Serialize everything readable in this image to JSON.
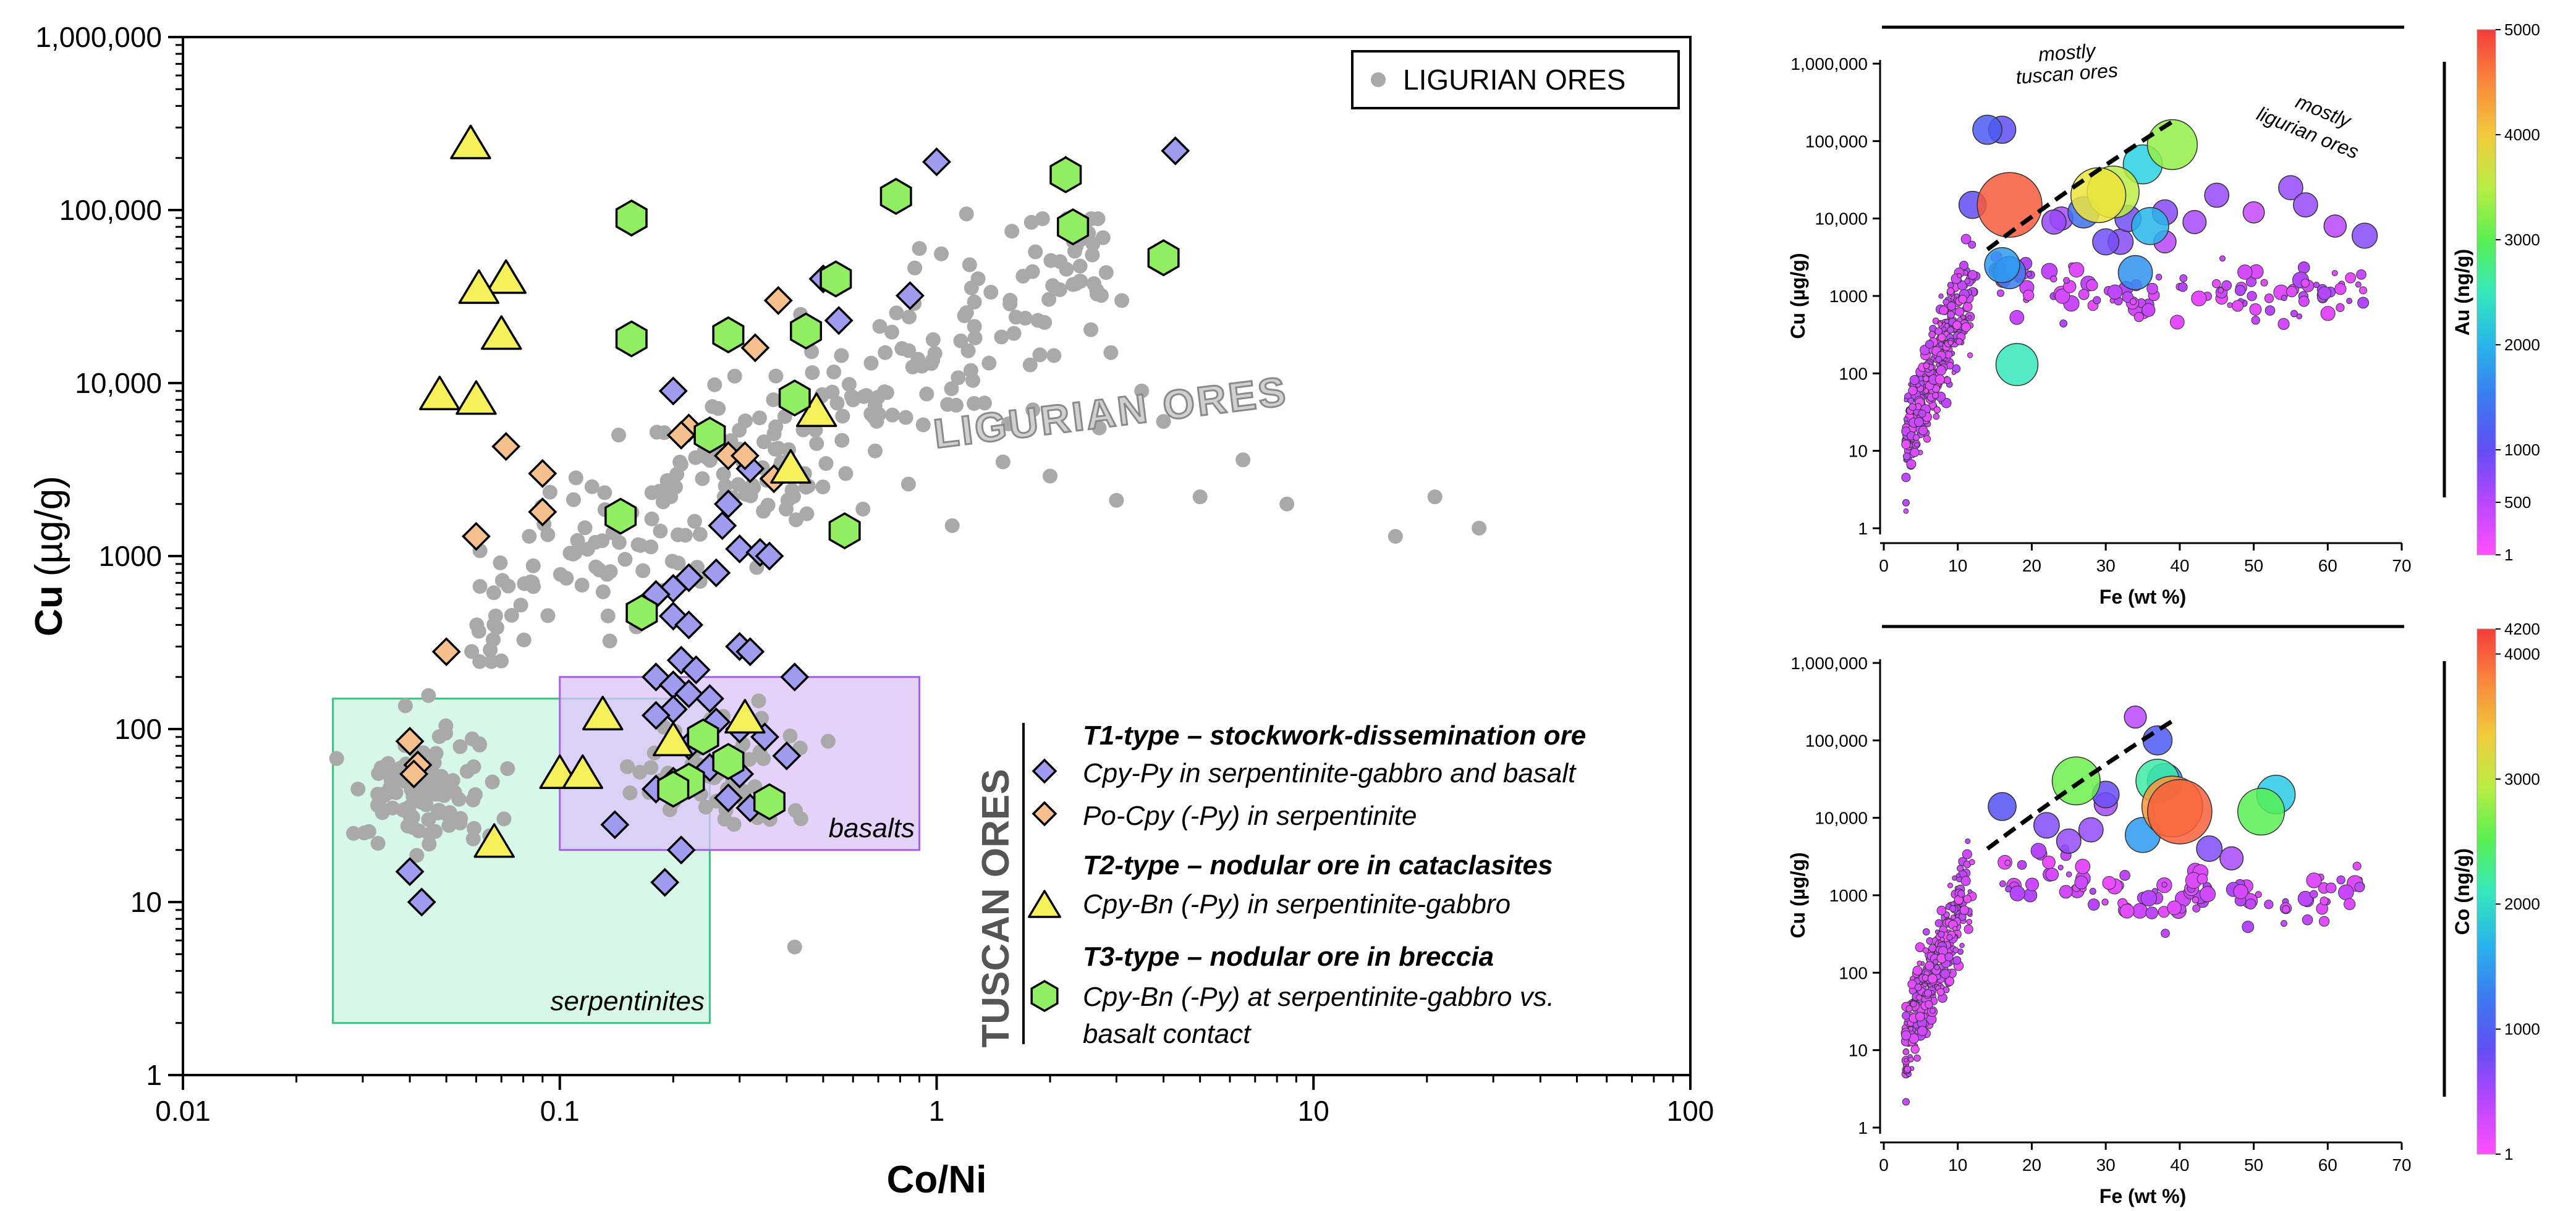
{
  "colors": {
    "ligurian": "#a9a9a9",
    "t1": "#9f9cf0",
    "t1_po": "#f6c08e",
    "t2": "#f6f15a",
    "t3": "#91ee62",
    "serp_fill": "#c9f5e1",
    "serp_stroke": "#39c47e",
    "basalt_fill": "#dcc3fa",
    "basalt_stroke": "#a660e8"
  },
  "chart_data": [
    {
      "id": "main",
      "type": "scatter",
      "xscale": "log",
      "yscale": "log",
      "xlim": [
        0.01,
        100
      ],
      "ylim": [
        1,
        1000000
      ],
      "xlabel": "Co/Ni",
      "ylabel_bold": "Cu",
      "ylabel_unit": "(µg/g)",
      "x_ticks": [
        0.01,
        0.1,
        1,
        10,
        100
      ],
      "x_tick_labels": [
        "0.01",
        "0.1",
        "1",
        "10",
        "100"
      ],
      "y_ticks": [
        1,
        10,
        100,
        1000,
        10000,
        100000,
        1000000
      ],
      "y_tick_labels": [
        "1",
        "10",
        "100",
        "1000",
        "10,000",
        "100,000",
        "1,000,000"
      ],
      "legend_box": {
        "label": "LIGURIAN ORES",
        "position": "top-right"
      },
      "annotation_ligurian": "LIGURIAN   ORES",
      "fields": [
        {
          "name": "serpentinites",
          "label": "serpentinites",
          "x": [
            0.025,
            0.25
          ],
          "y": [
            2,
            150
          ]
        },
        {
          "name": "basalts",
          "label": "basalts",
          "x": [
            0.1,
            0.9
          ],
          "y": [
            20,
            200
          ]
        }
      ],
      "tuscan_legend": {
        "title": "TUSCAN ORES",
        "t1_heading": "T1-type – stockwork-dissemination ore",
        "t1_item1": "Cpy-Py in serpentinite-gabbro and basalt",
        "t1_item2": "Po-Cpy (-Py) in serpentinite",
        "t2_heading": "T2-type – nodular ore in cataclasites",
        "t2_item1": "Cpy-Bn (-Py) in serpentinite-gabbro",
        "t3_heading": "T3-type – nodular ore in breccia",
        "t3_item1": "Cpy-Bn (-Py) at serpentinite-gabbro vs.",
        "t3_item2": "basalt contact"
      },
      "series": [
        {
          "name": "T1 Cpy-Py",
          "marker": "diamond",
          "points": [
            [
              1.0,
              190000
            ],
            [
              4.3,
              220000
            ],
            [
              2.2,
              170000
            ],
            [
              0.55,
              23000
            ],
            [
              0.85,
              32000
            ],
            [
              0.5,
              40000
            ],
            [
              0.2,
              9000
            ],
            [
              0.32,
              3200
            ],
            [
              0.28,
              2000
            ],
            [
              0.27,
              1500
            ],
            [
              0.3,
              1100
            ],
            [
              0.34,
              1050
            ],
            [
              0.36,
              1000
            ],
            [
              0.26,
              800
            ],
            [
              0.22,
              750
            ],
            [
              0.2,
              650
            ],
            [
              0.18,
              600
            ],
            [
              0.2,
              450
            ],
            [
              0.22,
              400
            ],
            [
              0.3,
              300
            ],
            [
              0.32,
              280
            ],
            [
              0.21,
              250
            ],
            [
              0.23,
              220
            ],
            [
              0.18,
              200
            ],
            [
              0.2,
              180
            ],
            [
              0.22,
              160
            ],
            [
              0.25,
              150
            ],
            [
              0.2,
              130
            ],
            [
              0.18,
              120
            ],
            [
              0.26,
              110
            ],
            [
              0.3,
              100
            ],
            [
              0.35,
              90
            ],
            [
              0.22,
              80
            ],
            [
              0.4,
              70
            ],
            [
              0.25,
              60
            ],
            [
              0.3,
              55
            ],
            [
              0.2,
              50
            ],
            [
              0.18,
              45
            ],
            [
              0.28,
              40
            ],
            [
              0.32,
              35
            ],
            [
              0.14,
              28
            ],
            [
              0.21,
              20
            ],
            [
              0.19,
              13
            ],
            [
              0.04,
              15
            ],
            [
              0.043,
              10
            ],
            [
              0.42,
              200
            ]
          ]
        },
        {
          "name": "T1 Po-Cpy",
          "marker": "diamond",
          "points": [
            [
              0.38,
              30000
            ],
            [
              0.33,
              16000
            ],
            [
              0.072,
              4300
            ],
            [
              0.22,
              5500
            ],
            [
              0.21,
              5000
            ],
            [
              0.25,
              5300
            ],
            [
              0.28,
              3800
            ],
            [
              0.31,
              3800
            ],
            [
              0.37,
              2800
            ],
            [
              0.09,
              3000
            ],
            [
              0.09,
              1800
            ],
            [
              0.06,
              1300
            ],
            [
              0.05,
              280
            ],
            [
              0.04,
              85
            ],
            [
              0.042,
              62
            ],
            [
              0.041,
              55
            ]
          ]
        },
        {
          "name": "T2 Cpy-Bn",
          "marker": "triangle",
          "points": [
            [
              0.058,
              240000
            ],
            [
              0.072,
              40000
            ],
            [
              0.061,
              35000
            ],
            [
              0.07,
              19000
            ],
            [
              0.048,
              8500
            ],
            [
              0.06,
              8000
            ],
            [
              0.48,
              6800
            ],
            [
              0.41,
              3200
            ],
            [
              0.13,
              120
            ],
            [
              0.31,
              115
            ],
            [
              0.2,
              85
            ],
            [
              0.1,
              55
            ],
            [
              0.115,
              55
            ],
            [
              0.067,
              22
            ]
          ]
        },
        {
          "name": "T3 Cpy-Bn",
          "marker": "hexagon",
          "points": [
            [
              0.155,
              90000
            ],
            [
              0.78,
              120000
            ],
            [
              2.2,
              160000
            ],
            [
              2.3,
              80000
            ],
            [
              4.0,
              53000
            ],
            [
              0.54,
              40000
            ],
            [
              0.45,
              20000
            ],
            [
              0.28,
              19000
            ],
            [
              0.155,
              18000
            ],
            [
              0.42,
              8200
            ],
            [
              0.25,
              5000
            ],
            [
              0.145,
              1700
            ],
            [
              0.57,
              1400
            ],
            [
              0.165,
              470
            ],
            [
              0.24,
              90
            ],
            [
              0.28,
              65
            ],
            [
              0.22,
              50
            ],
            [
              0.2,
              45
            ],
            [
              0.36,
              38
            ]
          ]
        }
      ]
    },
    {
      "id": "topright",
      "type": "bubble-scatter",
      "xlim": [
        0,
        70
      ],
      "ylim": [
        1,
        1000000
      ],
      "xlabel": "Fe (wt %)",
      "ylabel": "Cu (µg/g)",
      "x_ticks": [
        0,
        10,
        20,
        30,
        40,
        50,
        60,
        70
      ],
      "y_tick_labels": [
        "1",
        "10",
        "100",
        "1000",
        "10,000",
        "100,000",
        "1,000,000"
      ],
      "annotation_tuscan": [
        "mostly",
        "tuscan ores"
      ],
      "annotation_ligurian": [
        "mostly",
        "ligurian ores"
      ],
      "colorbar_label": "Au (ng/g)",
      "colorbar_ticks": [
        1,
        500,
        1000,
        2000,
        3000,
        4000,
        5000
      ],
      "colorbar_tick_labels": [
        "1",
        "500",
        "1000",
        "2000",
        "3000",
        "4000",
        "5000"
      ],
      "colorbar_max": 5000,
      "bubbles": [
        [
          17,
          15000,
          4800
        ],
        [
          39,
          90000,
          3300
        ],
        [
          14,
          140000,
          1200
        ],
        [
          16,
          140000,
          1000
        ],
        [
          12,
          15000,
          1000
        ],
        [
          18,
          130,
          2500
        ],
        [
          35,
          50000,
          2200
        ],
        [
          31,
          22000,
          3500
        ],
        [
          29,
          20000,
          3800
        ],
        [
          36,
          8000,
          2000
        ],
        [
          27,
          12000,
          1400
        ],
        [
          33,
          10000,
          900
        ],
        [
          23,
          9000,
          700
        ],
        [
          16,
          2500,
          1800
        ],
        [
          17,
          2000,
          1500
        ],
        [
          34,
          2000,
          1700
        ],
        [
          38,
          12000,
          800
        ],
        [
          45,
          20000,
          700
        ],
        [
          55,
          25000,
          700
        ],
        [
          61,
          8000,
          500
        ],
        [
          65,
          6000,
          800
        ],
        [
          50,
          12000,
          400
        ],
        [
          57,
          15000,
          700
        ],
        [
          24,
          10000,
          600
        ],
        [
          30,
          5000,
          900
        ],
        [
          42,
          9000,
          600
        ],
        [
          32,
          5000,
          800
        ],
        [
          38,
          5000,
          500
        ]
      ]
    },
    {
      "id": "bottomright",
      "type": "bubble-scatter",
      "xlim": [
        0,
        70
      ],
      "ylim": [
        1,
        1000000
      ],
      "xlabel": "Fe (wt %)",
      "ylabel": "Cu (µg/g)",
      "x_ticks": [
        0,
        10,
        20,
        30,
        40,
        50,
        60,
        70
      ],
      "y_tick_labels": [
        "1",
        "10",
        "100",
        "1000",
        "10,000",
        "100,000",
        "1,000,000"
      ],
      "colorbar_label": "Co (ng/g)",
      "colorbar_ticks": [
        1,
        1000,
        2000,
        3000,
        4000,
        4200
      ],
      "colorbar_tick_labels": [
        "1",
        "1000",
        "2000",
        "3000",
        "4000",
        "4200"
      ],
      "colorbar_max": 4200,
      "bubbles": [
        [
          40,
          12000,
          4000
        ],
        [
          39,
          14000,
          3700
        ],
        [
          37,
          30000,
          2200
        ],
        [
          53,
          20000,
          1800
        ],
        [
          51,
          12000,
          2500
        ],
        [
          26,
          30000,
          2600
        ],
        [
          37,
          100000,
          1000
        ],
        [
          38,
          30000,
          1500
        ],
        [
          35,
          6000,
          1500
        ],
        [
          30,
          20000,
          800
        ],
        [
          16,
          14000,
          900
        ],
        [
          22,
          8000,
          700
        ],
        [
          28,
          7000,
          600
        ],
        [
          44,
          4000,
          700
        ],
        [
          47,
          3000,
          500
        ],
        [
          34,
          200000,
          400
        ],
        [
          30,
          15000,
          500
        ],
        [
          25,
          5000,
          600
        ]
      ]
    }
  ]
}
